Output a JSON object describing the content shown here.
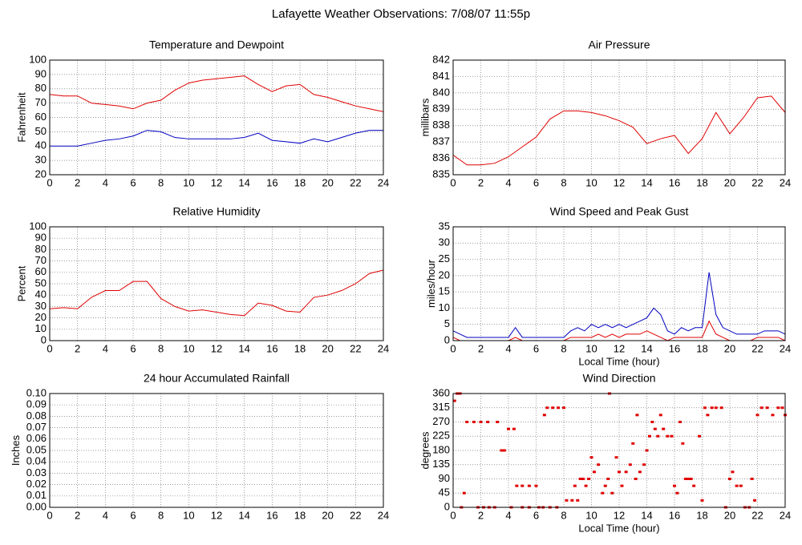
{
  "title": "Lafayette Weather Observations: 7/08/07 11:55p",
  "chart_data": [
    {
      "type": "line",
      "title": "Temperature and Dewpoint",
      "y_label": "Fahrenheit",
      "x": [
        0,
        1,
        2,
        3,
        4,
        5,
        6,
        7,
        8,
        9,
        10,
        11,
        12,
        13,
        14,
        15,
        16,
        17,
        18,
        19,
        20,
        21,
        22,
        23,
        24
      ],
      "series": [
        {
          "color": "#e00000",
          "values": [
            76,
            75,
            75,
            70,
            69,
            68,
            66,
            70,
            72,
            79,
            84,
            86,
            87,
            88,
            89,
            83,
            78,
            82,
            83,
            76,
            74,
            71,
            68,
            66,
            64
          ]
        },
        {
          "color": "#0000c0",
          "values": [
            40,
            40,
            40,
            42,
            44,
            45,
            47,
            51,
            50,
            46,
            45,
            45,
            45,
            45,
            46,
            49,
            44,
            43,
            42,
            45,
            43,
            46,
            49,
            51,
            51
          ]
        }
      ],
      "xlim": [
        0,
        24
      ],
      "xticks": [
        0,
        2,
        4,
        6,
        8,
        10,
        12,
        14,
        16,
        18,
        20,
        22,
        24
      ],
      "ylim": [
        20,
        100
      ],
      "yticks": [
        20,
        30,
        40,
        50,
        60,
        70,
        80,
        90,
        100
      ],
      "grid": true
    },
    {
      "type": "line",
      "title": "Air Pressure",
      "y_label": "millibars",
      "x": [
        0,
        1,
        2,
        3,
        4,
        5,
        6,
        7,
        8,
        9,
        10,
        11,
        12,
        13,
        14,
        15,
        16,
        17,
        18,
        19,
        20,
        21,
        22,
        23,
        24
      ],
      "series": [
        {
          "color": "#e00000",
          "values": [
            836.2,
            835.6,
            835.6,
            835.7,
            836.1,
            836.7,
            837.3,
            838.4,
            838.9,
            838.9,
            838.8,
            838.6,
            838.3,
            837.9,
            836.9,
            837.2,
            837.4,
            836.3,
            837.2,
            838.8,
            837.5,
            838.5,
            839.7,
            839.8,
            838.8
          ]
        }
      ],
      "xlim": [
        0,
        24
      ],
      "xticks": [
        0,
        2,
        4,
        6,
        8,
        10,
        12,
        14,
        16,
        18,
        20,
        22,
        24
      ],
      "ylim": [
        835,
        842
      ],
      "yticks": [
        835,
        836,
        837,
        838,
        839,
        840,
        841,
        842
      ],
      "grid": true
    },
    {
      "type": "line",
      "title": "Relative Humidity",
      "y_label": "Percent",
      "x": [
        0,
        1,
        2,
        3,
        4,
        5,
        6,
        7,
        8,
        9,
        10,
        11,
        12,
        13,
        14,
        15,
        16,
        17,
        18,
        19,
        20,
        21,
        22,
        23,
        24
      ],
      "series": [
        {
          "color": "#e00000",
          "values": [
            28,
            29,
            28,
            38,
            44,
            44,
            52,
            52,
            37,
            30,
            26,
            27,
            25,
            23,
            22,
            33,
            31,
            26,
            25,
            38,
            40,
            44,
            50,
            59,
            62
          ]
        }
      ],
      "xlim": [
        0,
        24
      ],
      "xticks": [
        0,
        2,
        4,
        6,
        8,
        10,
        12,
        14,
        16,
        18,
        20,
        22,
        24
      ],
      "ylim": [
        0,
        100
      ],
      "yticks": [
        0,
        10,
        20,
        30,
        40,
        50,
        60,
        70,
        80,
        90,
        100
      ],
      "grid": true
    },
    {
      "type": "line",
      "title": "Wind Speed and Peak Gust",
      "y_label": "miles/hour",
      "x_label": "Local Time (hour)",
      "x": [
        0,
        0.5,
        1,
        1.5,
        2,
        2.5,
        3,
        3.5,
        4,
        4.5,
        5,
        5.5,
        6,
        6.5,
        7,
        7.5,
        8,
        8.5,
        9,
        9.5,
        10,
        10.5,
        11,
        11.5,
        12,
        12.5,
        13,
        13.5,
        14,
        14.5,
        15,
        15.5,
        16,
        16.5,
        17,
        17.5,
        18,
        18.5,
        19,
        19.5,
        20,
        20.5,
        21,
        21.5,
        22,
        22.5,
        23,
        23.5,
        24
      ],
      "series": [
        {
          "color": "#0000c0",
          "values": [
            3,
            2,
            1,
            1,
            1,
            1,
            1,
            1,
            1,
            4,
            1,
            1,
            1,
            1,
            1,
            1,
            1,
            3,
            4,
            3,
            5,
            4,
            5,
            4,
            5,
            4,
            5,
            6,
            7,
            10,
            8,
            3,
            2,
            4,
            3,
            4,
            4,
            21,
            8,
            4,
            3,
            2,
            2,
            2,
            2,
            3,
            3,
            3,
            2
          ]
        },
        {
          "color": "#e00000",
          "values": [
            1,
            0,
            0,
            0,
            0,
            0,
            0,
            0,
            0,
            1,
            0,
            0,
            0,
            0,
            0,
            0,
            0,
            1,
            1,
            1,
            1,
            2,
            1,
            2,
            1,
            2,
            2,
            2,
            3,
            2,
            1,
            0,
            1,
            1,
            1,
            1,
            1,
            6,
            2,
            1,
            0,
            0,
            0,
            0,
            1,
            1,
            1,
            1,
            0
          ]
        }
      ],
      "xlim": [
        0,
        24
      ],
      "xticks": [
        0,
        2,
        4,
        6,
        8,
        10,
        12,
        14,
        16,
        18,
        20,
        22,
        24
      ],
      "ylim": [
        0,
        35
      ],
      "yticks": [
        0,
        5,
        10,
        15,
        20,
        25,
        30,
        35
      ],
      "grid": true
    },
    {
      "type": "line",
      "title": "24 hour Accumulated Rainfall",
      "y_label": "Inches",
      "x": [
        0,
        24
      ],
      "series": [
        {
          "color": "#e00000",
          "values": [
            0,
            0
          ]
        }
      ],
      "xlim": [
        0,
        24
      ],
      "xticks": [
        0,
        2,
        4,
        6,
        8,
        10,
        12,
        14,
        16,
        18,
        20,
        22,
        24
      ],
      "ylim": [
        0,
        0.1
      ],
      "yticks": [
        {
          "value": 0,
          "label": "0.00"
        },
        {
          "value": 0.01,
          "label": "0.01"
        },
        {
          "value": 0.02,
          "label": "0.02"
        },
        {
          "value": 0.03,
          "label": "0.03"
        },
        {
          "value": 0.04,
          "label": "0.04"
        },
        {
          "value": 0.05,
          "label": "0.05"
        },
        {
          "value": 0.06,
          "label": "0.06"
        },
        {
          "value": 0.07,
          "label": "0.07"
        },
        {
          "value": 0.08,
          "label": "0.08"
        },
        {
          "value": 0.09,
          "label": "0.09"
        },
        {
          "value": 0.1,
          "label": "0.10"
        }
      ],
      "grid": true
    },
    {
      "type": "scatter",
      "title": "Wind Direction",
      "y_label": "degrees",
      "x_label": "Local Time (hour)",
      "x": [
        0.1,
        0.3,
        0.5,
        0.6,
        0.8,
        1,
        1.5,
        1.8,
        2,
        2.2,
        2.5,
        2.6,
        3,
        3.2,
        3.5,
        3.7,
        4,
        4.2,
        4.4,
        4.6,
        5,
        5,
        5.5,
        5.5,
        6,
        6.2,
        6.5,
        6.6,
        6.8,
        7,
        7.2,
        7.5,
        7.6,
        8,
        8.2,
        8.6,
        8.8,
        9,
        9.2,
        9.4,
        9.6,
        9.8,
        10,
        10.2,
        10.5,
        10.8,
        11,
        11.2,
        11.3,
        11.5,
        11.8,
        12,
        12.2,
        12.5,
        12.8,
        13,
        13.2,
        13.3,
        13.5,
        13.8,
        14,
        14.2,
        14.4,
        14.6,
        14.8,
        15,
        15.2,
        15.5,
        15.8,
        16,
        16.2,
        16.4,
        16.6,
        16.8,
        17,
        17.2,
        17.4,
        17.8,
        18,
        18.2,
        18.4,
        18.7,
        19,
        19.4,
        19.7,
        20,
        20.2,
        20.5,
        20.8,
        21.1,
        21.4,
        21.6,
        21.8,
        22,
        22.3,
        22.7,
        23.1,
        23.5,
        23.8,
        24
      ],
      "series": [
        {
          "color": "#e00000",
          "values": [
            337,
            360,
            360,
            0,
            45,
            270,
            270,
            0,
            270,
            0,
            270,
            0,
            0,
            270,
            180,
            180,
            248,
            0,
            248,
            68,
            68,
            0,
            68,
            0,
            68,
            0,
            0,
            292,
            315,
            0,
            315,
            0,
            315,
            315,
            22,
            22,
            68,
            22,
            90,
            90,
            68,
            90,
            158,
            112,
            135,
            45,
            68,
            90,
            360,
            45,
            158,
            112,
            68,
            112,
            135,
            202,
            90,
            292,
            112,
            135,
            180,
            225,
            270,
            248,
            225,
            292,
            248,
            225,
            225,
            68,
            45,
            270,
            202,
            90,
            90,
            90,
            68,
            225,
            22,
            315,
            292,
            315,
            315,
            315,
            0,
            90,
            112,
            68,
            68,
            0,
            0,
            90,
            22,
            292,
            315,
            315,
            292,
            315,
            315,
            292
          ]
        }
      ],
      "xlim": [
        0,
        24
      ],
      "xticks": [
        0,
        2,
        4,
        6,
        8,
        10,
        12,
        14,
        16,
        18,
        20,
        22,
        24
      ],
      "ylim": [
        0,
        360
      ],
      "yticks": [
        0,
        45,
        90,
        135,
        180,
        225,
        270,
        315,
        360
      ],
      "grid": true
    }
  ]
}
